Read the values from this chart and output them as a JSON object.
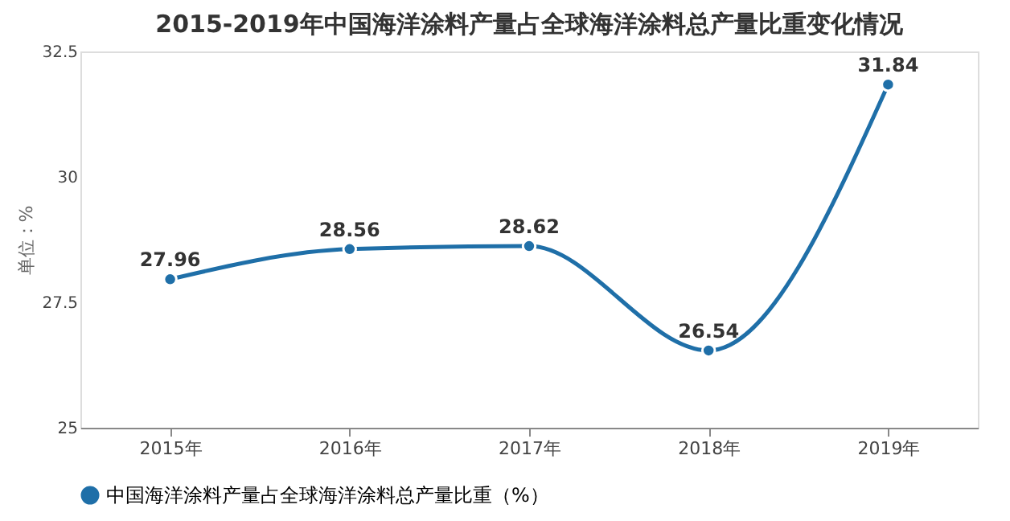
{
  "chart_data": {
    "type": "line",
    "title": "2015-2019年中国海洋涂料产量占全球海洋涂料总产量比重变化情况",
    "ylabel": "单位：%",
    "categories": [
      "2015年",
      "2016年",
      "2017年",
      "2018年",
      "2019年"
    ],
    "series": [
      {
        "name": "中国海洋涂料产量占全球海洋涂料总产量比重（%）",
        "color": "#1f6fa8",
        "values": [
          27.96,
          28.56,
          28.62,
          26.54,
          31.84
        ]
      }
    ],
    "ylim": [
      25,
      32.5
    ],
    "yticks": [
      25,
      27.5,
      30,
      32.5
    ],
    "grid": false,
    "legend": "bottom",
    "marker": "circle",
    "line_style": "solid",
    "data_labels": true
  }
}
